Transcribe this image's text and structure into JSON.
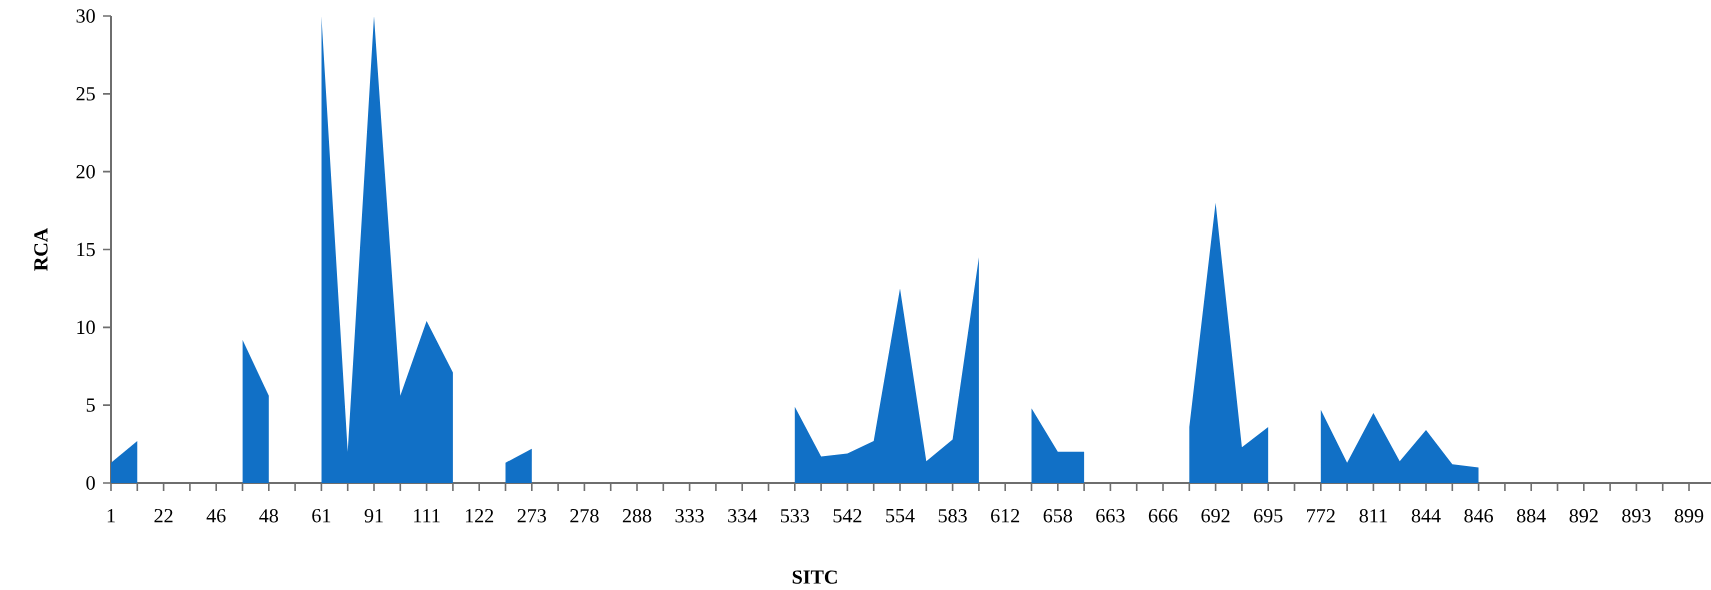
{
  "chart_data": {
    "type": "area",
    "xlabel": "SITC",
    "ylabel": "RCA",
    "color": "#1170c6",
    "categories": [
      "1",
      null,
      "22",
      null,
      "46",
      null,
      "48",
      null,
      "61",
      null,
      "91",
      null,
      "111",
      null,
      "122",
      null,
      "273",
      null,
      "278",
      null,
      "288",
      null,
      "333",
      null,
      "334",
      null,
      "533",
      null,
      "542",
      null,
      "554",
      null,
      "583",
      null,
      "612",
      null,
      "658",
      null,
      "663",
      null,
      "666",
      null,
      "692",
      null,
      "695",
      null,
      "772",
      null,
      "811",
      null,
      "844",
      null,
      "846",
      null,
      "884",
      null,
      "892",
      null,
      "893",
      null,
      "899",
      null
    ],
    "values": [
      1.3,
      2.7,
      null,
      null,
      null,
      9.2,
      5.6,
      null,
      30,
      2.0,
      30,
      5.6,
      10.4,
      7.1,
      null,
      1.3,
      2.2,
      null,
      null,
      null,
      null,
      null,
      null,
      null,
      null,
      null,
      4.9,
      1.7,
      1.9,
      2.7,
      12.5,
      1.4,
      2.8,
      14.5,
      null,
      4.8,
      2.0,
      2.0,
      null,
      null,
      null,
      3.6,
      18.0,
      2.3,
      3.6,
      null,
      4.7,
      1.3,
      4.5,
      1.4,
      3.4,
      1.2,
      1.0,
      null,
      null,
      null,
      null,
      null,
      null,
      null,
      null,
      null
    ],
    "ylim": [
      0,
      30
    ],
    "yticks": [
      0,
      5,
      10,
      15,
      20,
      25,
      30
    ]
  }
}
